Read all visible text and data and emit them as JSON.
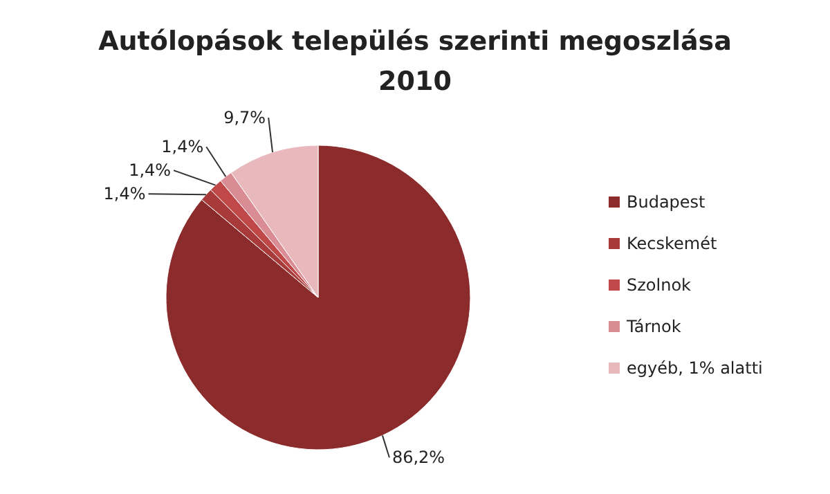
{
  "chart_data": {
    "type": "pie",
    "title": "Autólopások település szerinti megoszlása",
    "subtitle": "2010",
    "categories": [
      "Budapest",
      "Kecskemét",
      "Szolnok",
      "Tárnok",
      "egyéb, 1% alatti"
    ],
    "values": [
      86.2,
      1.4,
      1.4,
      1.4,
      9.7
    ],
    "colors": [
      "#8c2b2b",
      "#a83a3a",
      "#c04848",
      "#d98c94",
      "#e8b8bc"
    ],
    "value_labels": [
      "86,2%",
      "1,4%",
      "1,4%",
      "1,4%",
      "9,7%"
    ],
    "legend": "right"
  }
}
